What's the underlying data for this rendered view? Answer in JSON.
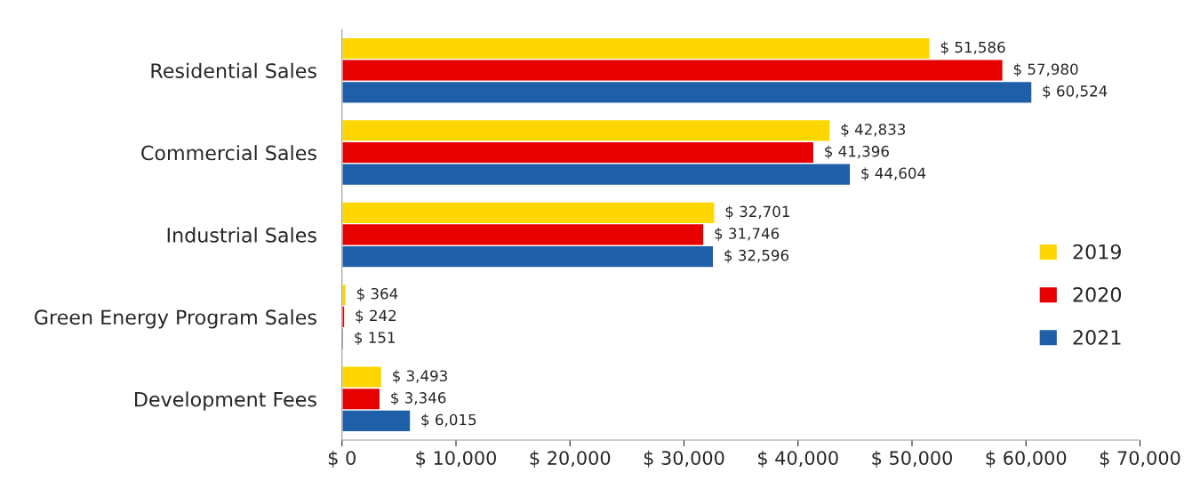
{
  "chart_data": {
    "type": "bar",
    "orientation": "horizontal",
    "categories": [
      "Residential Sales",
      "Commercial Sales",
      "Industrial Sales",
      "Green Energy Program Sales",
      "Development Fees"
    ],
    "series": [
      {
        "name": "2019",
        "color": "#ffd700",
        "values": [
          51586,
          42833,
          32701,
          364,
          3493
        ],
        "value_labels": [
          "$ 51,586",
          "$ 42,833",
          "$ 32,701",
          "$ 364",
          "$ 3,493"
        ]
      },
      {
        "name": "2020",
        "color": "#e60000",
        "values": [
          57980,
          41396,
          31746,
          242,
          3346
        ],
        "value_labels": [
          "$ 57,980",
          "$ 41,396",
          "$ 31,746",
          "$ 242",
          "$ 3,346"
        ]
      },
      {
        "name": "2021",
        "color": "#1f5fa8",
        "values": [
          60524,
          44604,
          32596,
          151,
          6015
        ],
        "value_labels": [
          "$ 60,524",
          "$ 44,604",
          "$ 32,596",
          "$ 151",
          "$ 6,015"
        ]
      }
    ],
    "xlim": [
      0,
      70000
    ],
    "xticks": [
      {
        "value": 0,
        "label": "$ 0"
      },
      {
        "value": 10000,
        "label": "$ 10,000"
      },
      {
        "value": 20000,
        "label": "$ 20,000"
      },
      {
        "value": 30000,
        "label": "$ 30,000"
      },
      {
        "value": 40000,
        "label": "$ 40,000"
      },
      {
        "value": 50000,
        "label": "$ 50,000"
      },
      {
        "value": 60000,
        "label": "$ 60,000"
      },
      {
        "value": 70000,
        "label": "$ 70,000"
      }
    ],
    "grid": false,
    "legend": "right"
  }
}
